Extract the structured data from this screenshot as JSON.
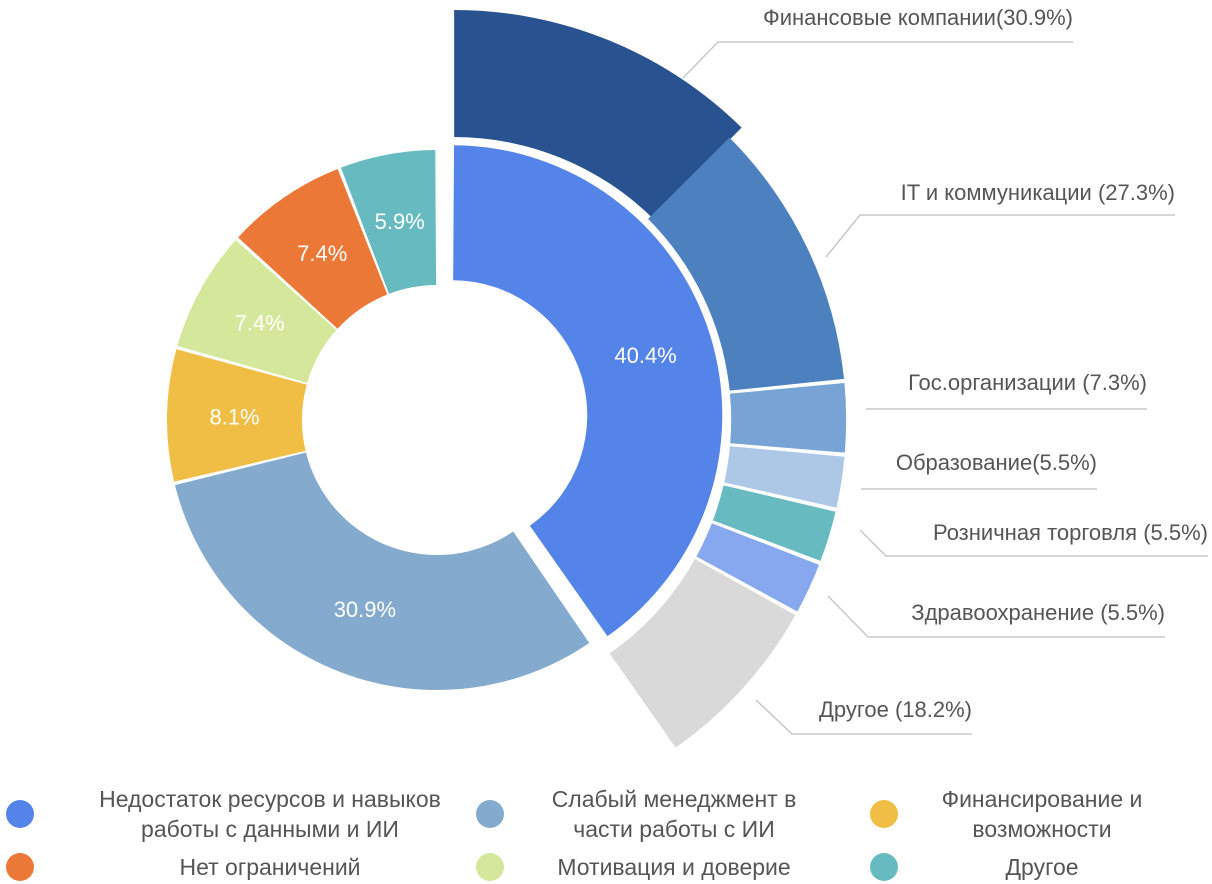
{
  "chart_data": {
    "type": "pie",
    "inner_ring": {
      "categories": [
        "Недостаток ресурсов и навыков работы с данными и ИИ",
        "Слабый менеджмент в части работы с ИИ",
        "Финансирование и возможности",
        "Мотивация и доверие",
        "Нет ограничений",
        "Другое"
      ],
      "values": [
        40.4,
        30.9,
        8.1,
        7.4,
        7.4,
        5.9
      ],
      "data_labels": [
        "40.4%",
        "30.9%",
        "8.1%",
        "7.4%",
        "7.4%",
        "5.9%"
      ],
      "colors": [
        "#5584E9",
        "#84ABCD",
        "#F0BE44",
        "#D5E79B",
        "#EC7838",
        "#68BAC1"
      ]
    },
    "outer_ring": {
      "parent_category": "Недостаток ресурсов и навыков работы с данными и ИИ",
      "categories": [
        "Финансовые компании",
        "IT и коммуникации",
        "Гос.организации",
        "Образование",
        "Розничная торговля",
        "Здравоохранение",
        "Другое"
      ],
      "values": [
        30.9,
        27.3,
        7.3,
        5.5,
        5.5,
        5.5,
        18.2
      ],
      "labels": [
        "Финансовые компании(30.9%)",
        "IT и коммуникации (27.3%)",
        "Гос.организации (7.3%)",
        "Образование(5.5%)",
        "Розничная торговля (5.5%)",
        "Здравоохранение (5.5%)",
        "Другое (18.2%)"
      ],
      "colors": [
        "#285390",
        "#4D80BF",
        "#78A4D5",
        "#ADC8E6",
        "#68BAC1",
        "#87A8EE",
        "#D9D9D9"
      ]
    },
    "legend": {
      "position": "bottom",
      "items": [
        {
          "label": "Недостаток ресурсов и навыков работы с данными и ИИ",
          "color": "#5584E9"
        },
        {
          "label": "Слабый менеджмент в части работы с ИИ",
          "color": "#84ABCD"
        },
        {
          "label": "Финансирование и возможности",
          "color": "#F0BE44"
        },
        {
          "label": "Нет ограничений",
          "color": "#EC7838"
        },
        {
          "label": "Мотивация и доверие",
          "color": "#D5E79B"
        },
        {
          "label": "Другое",
          "color": "#68BAC1"
        }
      ]
    }
  }
}
